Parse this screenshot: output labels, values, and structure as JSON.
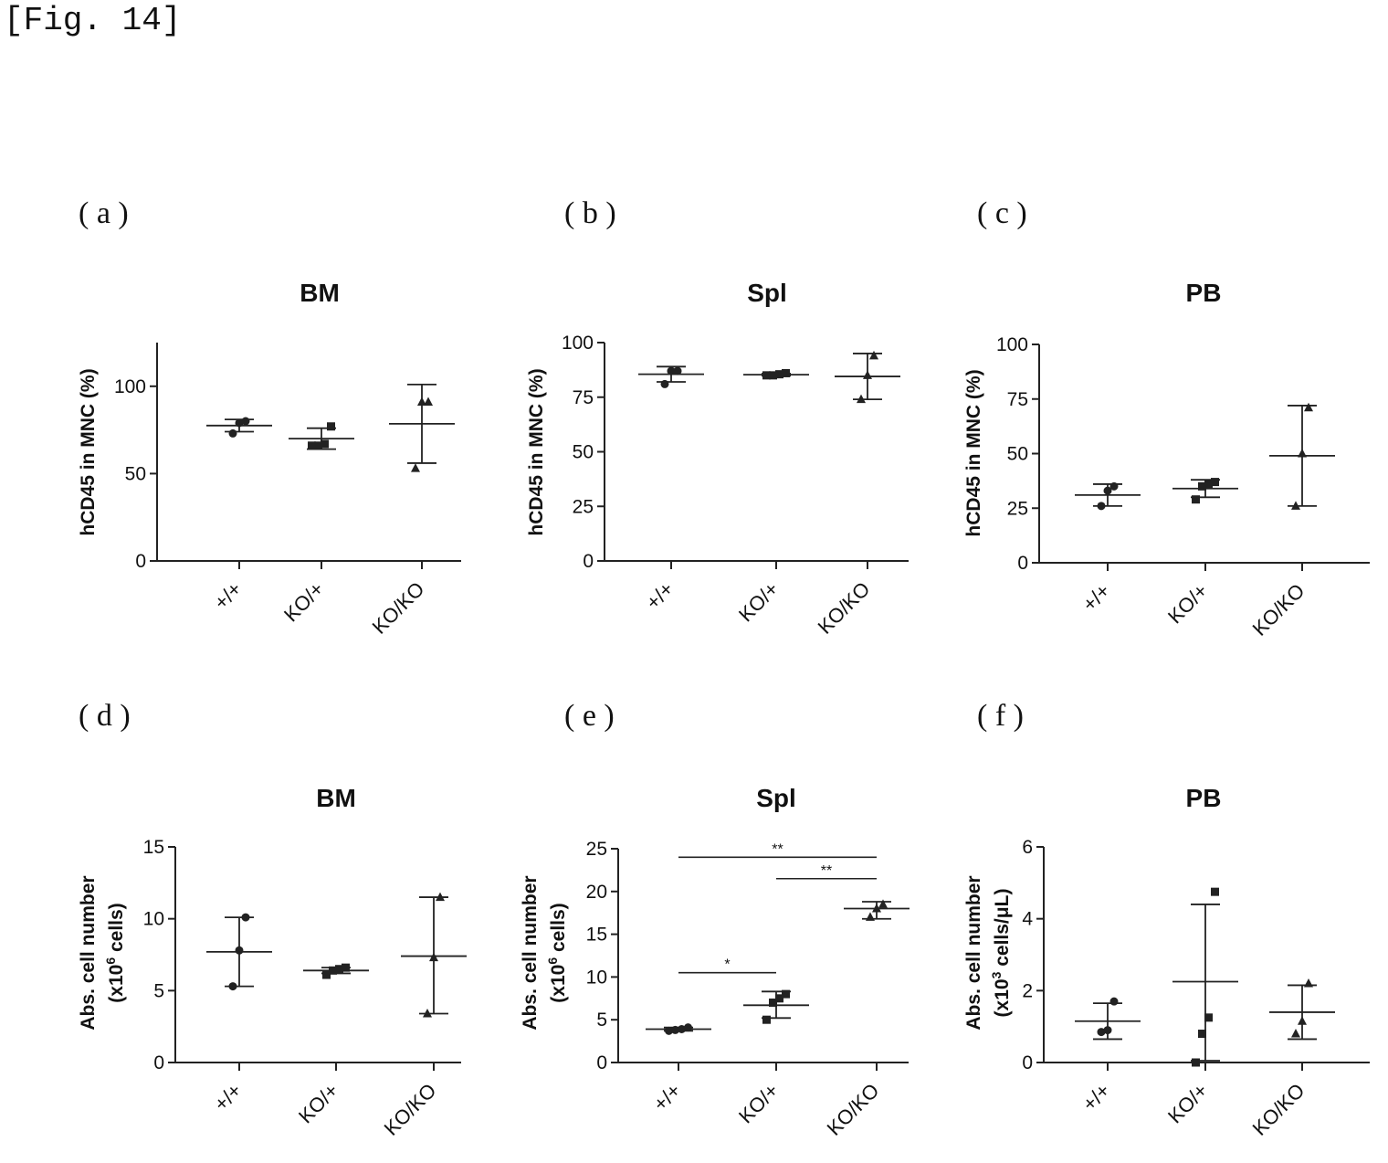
{
  "figure_label": "[Fig. 14]",
  "chart_data": [
    {
      "type": "scatter",
      "letter": "(a)",
      "title": "BM",
      "ylabel": "hCD45 in MNC (%)",
      "ylabel_sup": "",
      "ylabel_line2": "",
      "ylim": [
        0,
        125
      ],
      "yticks": [
        0,
        50,
        100
      ],
      "categories": [
        "+/+",
        "KO/+",
        "KO/KO"
      ],
      "groups": [
        {
          "marker": "circle",
          "points": [
            73,
            79,
            80
          ],
          "mean": 77.5,
          "err": [
            74,
            81
          ]
        },
        {
          "marker": "square",
          "points": [
            66,
            66,
            67,
            77
          ],
          "mean": 70,
          "err": [
            64,
            76
          ]
        },
        {
          "marker": "triangle",
          "points": [
            53,
            91,
            91
          ],
          "mean": 78.5,
          "err": [
            56,
            101
          ]
        }
      ],
      "sig": []
    },
    {
      "type": "scatter",
      "letter": "(b)",
      "title": "Spl",
      "ylabel": "hCD45 in MNC (%)",
      "ylabel_sup": "",
      "ylabel_line2": "",
      "ylim": [
        0,
        100
      ],
      "yticks": [
        0,
        25,
        50,
        75,
        100
      ],
      "categories": [
        "+/+",
        "KO/+",
        "KO/KO"
      ],
      "groups": [
        {
          "marker": "circle",
          "points": [
            81,
            87,
            87
          ],
          "mean": 85.5,
          "err": [
            82,
            89
          ]
        },
        {
          "marker": "square",
          "points": [
            85,
            85,
            85.5,
            86
          ],
          "mean": 85.3,
          "err": [
            84.8,
            85.8
          ]
        },
        {
          "marker": "triangle",
          "points": [
            74,
            85,
            94
          ],
          "mean": 84.5,
          "err": [
            74,
            95
          ]
        }
      ],
      "sig": []
    },
    {
      "type": "scatter",
      "letter": "(c)",
      "title": "PB",
      "ylabel": "hCD45 in MNC (%)",
      "ylabel_sup": "",
      "ylabel_line2": "",
      "ylim": [
        0,
        100
      ],
      "yticks": [
        0,
        25,
        50,
        75,
        100
      ],
      "categories": [
        "+/+",
        "KO/+",
        "KO/KO"
      ],
      "groups": [
        {
          "marker": "circle",
          "points": [
            26,
            33,
            35
          ],
          "mean": 31,
          "err": [
            26,
            36
          ]
        },
        {
          "marker": "square",
          "points": [
            29,
            35,
            36,
            37
          ],
          "mean": 34,
          "err": [
            30,
            38
          ]
        },
        {
          "marker": "triangle",
          "points": [
            26,
            50,
            71
          ],
          "mean": 49,
          "err": [
            26,
            72
          ]
        }
      ],
      "sig": []
    },
    {
      "type": "scatter",
      "letter": "(d)",
      "title": "BM",
      "ylabel": "Abs. cell number",
      "ylabel_sup": "",
      "ylabel_line2": "(x10",
      "ylabel_sup2": "6",
      "ylabel_line2b": " cells)",
      "ylim": [
        0,
        15
      ],
      "yticks": [
        0,
        5,
        10,
        15
      ],
      "categories": [
        "+/+",
        "KO/+",
        "KO/KO"
      ],
      "groups": [
        {
          "marker": "circle",
          "points": [
            5.3,
            7.8,
            10.1
          ],
          "mean": 7.7,
          "err": [
            5.3,
            10.1
          ]
        },
        {
          "marker": "square",
          "points": [
            6.1,
            6.4,
            6.5,
            6.6
          ],
          "mean": 6.4,
          "err": [
            6.2,
            6.6
          ]
        },
        {
          "marker": "triangle",
          "points": [
            3.4,
            7.3,
            11.5
          ],
          "mean": 7.4,
          "err": [
            3.4,
            11.5
          ]
        }
      ],
      "sig": []
    },
    {
      "type": "scatter",
      "letter": "(e)",
      "title": "Spl",
      "ylabel": "Abs. cell number",
      "ylabel_sup": "",
      "ylabel_line2": "(x10",
      "ylabel_sup2": "6",
      "ylabel_line2b": " cells)",
      "ylim": [
        0,
        25
      ],
      "yticks": [
        0,
        5,
        10,
        15,
        20,
        25
      ],
      "categories": [
        "+/+",
        "KO/+",
        "KO/KO"
      ],
      "groups": [
        {
          "marker": "circle",
          "points": [
            3.7,
            3.8,
            3.9,
            4.1
          ],
          "mean": 3.9,
          "err": [
            3.7,
            4.1
          ]
        },
        {
          "marker": "square",
          "points": [
            5.0,
            7.0,
            7.5,
            8.0
          ],
          "mean": 6.7,
          "err": [
            5.2,
            8.3
          ]
        },
        {
          "marker": "triangle",
          "points": [
            17.0,
            18.0,
            18.5
          ],
          "mean": 18.0,
          "err": [
            16.8,
            18.8
          ]
        }
      ],
      "sig": [
        {
          "from": 0,
          "to": 2,
          "y": 24,
          "label": "**"
        },
        {
          "from": 1,
          "to": 2,
          "y": 21.5,
          "label": "**"
        },
        {
          "from": 0,
          "to": 1,
          "y": 10.5,
          "label": "*"
        }
      ]
    },
    {
      "type": "scatter",
      "letter": "(f)",
      "title": "PB",
      "ylabel": "Abs. cell number",
      "ylabel_sup": "",
      "ylabel_line2": "(x10",
      "ylabel_sup2": "3",
      "ylabel_line2b": " cells/μL)",
      "ylim": [
        0,
        6
      ],
      "yticks": [
        0,
        2,
        4,
        6
      ],
      "categories": [
        "+/+",
        "KO/+",
        "KO/KO"
      ],
      "groups": [
        {
          "marker": "circle",
          "points": [
            0.85,
            0.9,
            1.7
          ],
          "mean": 1.15,
          "err": [
            0.65,
            1.65
          ]
        },
        {
          "marker": "square",
          "points": [
            0.0,
            0.8,
            1.25,
            4.75
          ],
          "mean": 2.25,
          "err": [
            0.05,
            4.4
          ]
        },
        {
          "marker": "triangle",
          "points": [
            0.8,
            1.15,
            2.2
          ],
          "mean": 1.4,
          "err": [
            0.65,
            2.15
          ]
        }
      ],
      "sig": []
    }
  ]
}
